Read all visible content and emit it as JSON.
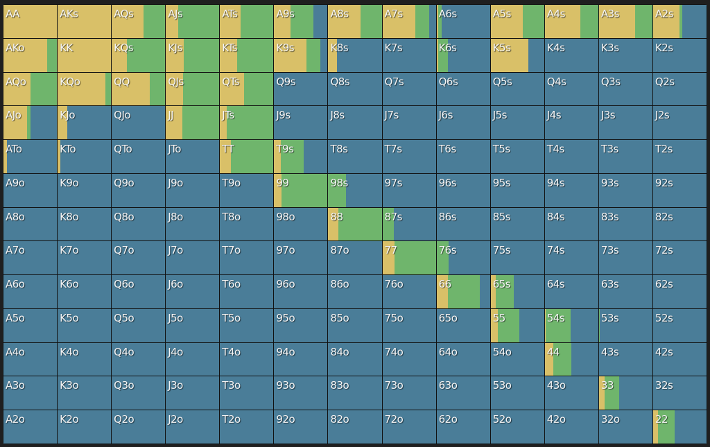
{
  "colors": {
    "raise": "#d9c068",
    "call": "#6fb56c",
    "fold": "#4a7d98"
  },
  "grid": {
    "rows": [
      [
        {
          "hand": "AA",
          "raise": 100,
          "call": 0
        },
        {
          "hand": "AKs",
          "raise": 100,
          "call": 0
        },
        {
          "hand": "AQs",
          "raise": 60,
          "call": 40
        },
        {
          "hand": "AJs",
          "raise": 23,
          "call": 77
        },
        {
          "hand": "ATs",
          "raise": 38,
          "call": 62
        },
        {
          "hand": "A9s",
          "raise": 31,
          "call": 43
        },
        {
          "hand": "A8s",
          "raise": 61,
          "call": 39
        },
        {
          "hand": "A7s",
          "raise": 61,
          "call": 27
        },
        {
          "hand": "A6s",
          "raise": 3,
          "call": 7
        },
        {
          "hand": "A5s",
          "raise": 60,
          "call": 40
        },
        {
          "hand": "A4s",
          "raise": 66,
          "call": 34
        },
        {
          "hand": "A3s",
          "raise": 68,
          "call": 32
        },
        {
          "hand": "A2s",
          "raise": 49,
          "call": 6
        }
      ],
      [
        {
          "hand": "AKo",
          "raise": 82,
          "call": 18
        },
        {
          "hand": "KK",
          "raise": 100,
          "call": 0
        },
        {
          "hand": "KQs",
          "raise": 29,
          "call": 71
        },
        {
          "hand": "KJs",
          "raise": 34,
          "call": 66
        },
        {
          "hand": "KTs",
          "raise": 32,
          "call": 68
        },
        {
          "hand": "K9s",
          "raise": 60,
          "call": 27
        },
        {
          "hand": "K8s",
          "raise": 16,
          "call": 0
        },
        {
          "hand": "K7s",
          "raise": 0,
          "call": 0
        },
        {
          "hand": "K6s",
          "raise": 3,
          "call": 18
        },
        {
          "hand": "K5s",
          "raise": 70,
          "call": 0
        },
        {
          "hand": "K4s",
          "raise": 0,
          "call": 0
        },
        {
          "hand": "K3s",
          "raise": 0,
          "call": 0
        },
        {
          "hand": "K2s",
          "raise": 0,
          "call": 0
        }
      ],
      [
        {
          "hand": "AQo",
          "raise": 50,
          "call": 50
        },
        {
          "hand": "KQo",
          "raise": 89,
          "call": 11
        },
        {
          "hand": "QQ",
          "raise": 71,
          "call": 29
        },
        {
          "hand": "QJs",
          "raise": 32,
          "call": 68
        },
        {
          "hand": "QTs",
          "raise": 45,
          "call": 55
        },
        {
          "hand": "Q9s",
          "raise": 0,
          "call": 0
        },
        {
          "hand": "Q8s",
          "raise": 0,
          "call": 0
        },
        {
          "hand": "Q7s",
          "raise": 0,
          "call": 0
        },
        {
          "hand": "Q6s",
          "raise": 0,
          "call": 0
        },
        {
          "hand": "Q5s",
          "raise": 0,
          "call": 0
        },
        {
          "hand": "Q4s",
          "raise": 0,
          "call": 0
        },
        {
          "hand": "Q3s",
          "raise": 0,
          "call": 0
        },
        {
          "hand": "Q2s",
          "raise": 0,
          "call": 0
        }
      ],
      [
        {
          "hand": "AJo",
          "raise": 44,
          "call": 6
        },
        {
          "hand": "KJo",
          "raise": 18,
          "call": 0
        },
        {
          "hand": "QJo",
          "raise": 0,
          "call": 0
        },
        {
          "hand": "JJ",
          "raise": 31,
          "call": 69
        },
        {
          "hand": "JTs",
          "raise": 12,
          "call": 88
        },
        {
          "hand": "J9s",
          "raise": 0,
          "call": 0
        },
        {
          "hand": "J8s",
          "raise": 0,
          "call": 0
        },
        {
          "hand": "J7s",
          "raise": 0,
          "call": 0
        },
        {
          "hand": "J6s",
          "raise": 0,
          "call": 0
        },
        {
          "hand": "J5s",
          "raise": 0,
          "call": 0
        },
        {
          "hand": "J4s",
          "raise": 0,
          "call": 0
        },
        {
          "hand": "J3s",
          "raise": 0,
          "call": 0
        },
        {
          "hand": "J2s",
          "raise": 0,
          "call": 0
        }
      ],
      [
        {
          "hand": "ATo",
          "raise": 7,
          "call": 0
        },
        {
          "hand": "KTo",
          "raise": 5,
          "call": 0
        },
        {
          "hand": "QTo",
          "raise": 0,
          "call": 0
        },
        {
          "hand": "JTo",
          "raise": 0,
          "call": 0
        },
        {
          "hand": "TT",
          "raise": 21,
          "call": 79
        },
        {
          "hand": "T9s",
          "raise": 12,
          "call": 43
        },
        {
          "hand": "T8s",
          "raise": 0,
          "call": 0
        },
        {
          "hand": "T7s",
          "raise": 0,
          "call": 0
        },
        {
          "hand": "T6s",
          "raise": 0,
          "call": 0
        },
        {
          "hand": "T5s",
          "raise": 0,
          "call": 0
        },
        {
          "hand": "T4s",
          "raise": 0,
          "call": 0
        },
        {
          "hand": "T3s",
          "raise": 0,
          "call": 0
        },
        {
          "hand": "T2s",
          "raise": 0,
          "call": 0
        }
      ],
      [
        {
          "hand": "A9o",
          "raise": 0,
          "call": 0
        },
        {
          "hand": "K9o",
          "raise": 0,
          "call": 0
        },
        {
          "hand": "Q9o",
          "raise": 0,
          "call": 0
        },
        {
          "hand": "J9o",
          "raise": 0,
          "call": 0
        },
        {
          "hand": "T9o",
          "raise": 0,
          "call": 0
        },
        {
          "hand": "99",
          "raise": 14,
          "call": 86
        },
        {
          "hand": "98s",
          "raise": 0,
          "call": 33
        },
        {
          "hand": "97s",
          "raise": 0,
          "call": 0
        },
        {
          "hand": "96s",
          "raise": 0,
          "call": 0
        },
        {
          "hand": "95s",
          "raise": 0,
          "call": 0
        },
        {
          "hand": "94s",
          "raise": 0,
          "call": 0
        },
        {
          "hand": "93s",
          "raise": 0,
          "call": 0
        },
        {
          "hand": "92s",
          "raise": 0,
          "call": 0
        }
      ],
      [
        {
          "hand": "A8o",
          "raise": 0,
          "call": 0
        },
        {
          "hand": "K8o",
          "raise": 0,
          "call": 0
        },
        {
          "hand": "Q8o",
          "raise": 0,
          "call": 0
        },
        {
          "hand": "J8o",
          "raise": 0,
          "call": 0
        },
        {
          "hand": "T8o",
          "raise": 0,
          "call": 0
        },
        {
          "hand": "98o",
          "raise": 0,
          "call": 0
        },
        {
          "hand": "88",
          "raise": 19,
          "call": 81
        },
        {
          "hand": "87s",
          "raise": 0,
          "call": 21
        },
        {
          "hand": "86s",
          "raise": 0,
          "call": 0
        },
        {
          "hand": "85s",
          "raise": 0,
          "call": 0
        },
        {
          "hand": "84s",
          "raise": 0,
          "call": 0
        },
        {
          "hand": "83s",
          "raise": 0,
          "call": 0
        },
        {
          "hand": "82s",
          "raise": 0,
          "call": 0
        }
      ],
      [
        {
          "hand": "A7o",
          "raise": 0,
          "call": 0
        },
        {
          "hand": "K7o",
          "raise": 0,
          "call": 0
        },
        {
          "hand": "Q7o",
          "raise": 0,
          "call": 0
        },
        {
          "hand": "J7o",
          "raise": 0,
          "call": 0
        },
        {
          "hand": "T7o",
          "raise": 0,
          "call": 0
        },
        {
          "hand": "97o",
          "raise": 0,
          "call": 0
        },
        {
          "hand": "87o",
          "raise": 0,
          "call": 0
        },
        {
          "hand": "77",
          "raise": 23,
          "call": 77
        },
        {
          "hand": "76s",
          "raise": 0,
          "call": 22
        },
        {
          "hand": "75s",
          "raise": 0,
          "call": 0
        },
        {
          "hand": "74s",
          "raise": 0,
          "call": 0
        },
        {
          "hand": "73s",
          "raise": 0,
          "call": 0
        },
        {
          "hand": "72s",
          "raise": 0,
          "call": 0
        }
      ],
      [
        {
          "hand": "A6o",
          "raise": 0,
          "call": 0
        },
        {
          "hand": "K6o",
          "raise": 0,
          "call": 0
        },
        {
          "hand": "Q6o",
          "raise": 0,
          "call": 0
        },
        {
          "hand": "J6o",
          "raise": 0,
          "call": 0
        },
        {
          "hand": "T6o",
          "raise": 0,
          "call": 0
        },
        {
          "hand": "96o",
          "raise": 0,
          "call": 0
        },
        {
          "hand": "86o",
          "raise": 0,
          "call": 0
        },
        {
          "hand": "76o",
          "raise": 0,
          "call": 0
        },
        {
          "hand": "66",
          "raise": 21,
          "call": 60
        },
        {
          "hand": "65s",
          "raise": 9,
          "call": 34
        },
        {
          "hand": "64s",
          "raise": 0,
          "call": 0
        },
        {
          "hand": "63s",
          "raise": 0,
          "call": 0
        },
        {
          "hand": "62s",
          "raise": 0,
          "call": 0
        }
      ],
      [
        {
          "hand": "A5o",
          "raise": 0,
          "call": 0
        },
        {
          "hand": "K5o",
          "raise": 0,
          "call": 0
        },
        {
          "hand": "Q5o",
          "raise": 0,
          "call": 0
        },
        {
          "hand": "J5o",
          "raise": 0,
          "call": 0
        },
        {
          "hand": "T5o",
          "raise": 0,
          "call": 0
        },
        {
          "hand": "95o",
          "raise": 0,
          "call": 0
        },
        {
          "hand": "85o",
          "raise": 0,
          "call": 0
        },
        {
          "hand": "75o",
          "raise": 0,
          "call": 0
        },
        {
          "hand": "65o",
          "raise": 0,
          "call": 0
        },
        {
          "hand": "55",
          "raise": 14,
          "call": 40
        },
        {
          "hand": "54s",
          "raise": 2,
          "call": 46
        },
        {
          "hand": "53s",
          "raise": 0,
          "call": 1
        },
        {
          "hand": "52s",
          "raise": 0,
          "call": 0
        }
      ],
      [
        {
          "hand": "A4o",
          "raise": 0,
          "call": 0
        },
        {
          "hand": "K4o",
          "raise": 0,
          "call": 0
        },
        {
          "hand": "Q4o",
          "raise": 0,
          "call": 0
        },
        {
          "hand": "J4o",
          "raise": 0,
          "call": 0
        },
        {
          "hand": "T4o",
          "raise": 0,
          "call": 0
        },
        {
          "hand": "94o",
          "raise": 0,
          "call": 0
        },
        {
          "hand": "84o",
          "raise": 0,
          "call": 0
        },
        {
          "hand": "74o",
          "raise": 0,
          "call": 0
        },
        {
          "hand": "64o",
          "raise": 0,
          "call": 0
        },
        {
          "hand": "54o",
          "raise": 0,
          "call": 0
        },
        {
          "hand": "44",
          "raise": 16,
          "call": 34
        },
        {
          "hand": "43s",
          "raise": 0,
          "call": 0
        },
        {
          "hand": "42s",
          "raise": 0,
          "call": 0
        }
      ],
      [
        {
          "hand": "A3o",
          "raise": 0,
          "call": 0
        },
        {
          "hand": "K3o",
          "raise": 0,
          "call": 0
        },
        {
          "hand": "Q3o",
          "raise": 0,
          "call": 0
        },
        {
          "hand": "J3o",
          "raise": 0,
          "call": 0
        },
        {
          "hand": "T3o",
          "raise": 0,
          "call": 0
        },
        {
          "hand": "93o",
          "raise": 0,
          "call": 0
        },
        {
          "hand": "83o",
          "raise": 0,
          "call": 0
        },
        {
          "hand": "73o",
          "raise": 0,
          "call": 0
        },
        {
          "hand": "63o",
          "raise": 0,
          "call": 0
        },
        {
          "hand": "53o",
          "raise": 0,
          "call": 0
        },
        {
          "hand": "43o",
          "raise": 0,
          "call": 0
        },
        {
          "hand": "33",
          "raise": 10,
          "call": 28
        },
        {
          "hand": "32s",
          "raise": 0,
          "call": 0
        }
      ],
      [
        {
          "hand": "A2o",
          "raise": 0,
          "call": 0
        },
        {
          "hand": "K2o",
          "raise": 0,
          "call": 0
        },
        {
          "hand": "Q2o",
          "raise": 0,
          "call": 0
        },
        {
          "hand": "J2o",
          "raise": 0,
          "call": 0
        },
        {
          "hand": "T2o",
          "raise": 0,
          "call": 0
        },
        {
          "hand": "92o",
          "raise": 0,
          "call": 0
        },
        {
          "hand": "82o",
          "raise": 0,
          "call": 0
        },
        {
          "hand": "72o",
          "raise": 0,
          "call": 0
        },
        {
          "hand": "62o",
          "raise": 0,
          "call": 0
        },
        {
          "hand": "52o",
          "raise": 0,
          "call": 0
        },
        {
          "hand": "42o",
          "raise": 0,
          "call": 0
        },
        {
          "hand": "32o",
          "raise": 0,
          "call": 0
        },
        {
          "hand": "22",
          "raise": 9,
          "call": 31
        }
      ]
    ]
  }
}
